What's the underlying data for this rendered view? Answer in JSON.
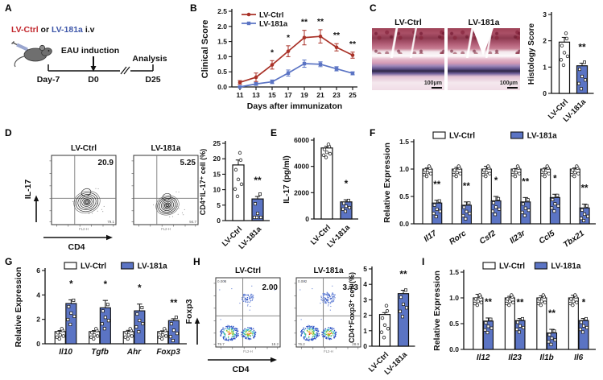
{
  "colors": {
    "red": "#a93228",
    "blue": "#5b74c4",
    "red_text": "#c2272d",
    "blue_text": "#3e57a9",
    "bar_stroke": "#111111"
  },
  "panels": {
    "A": {
      "label": "A",
      "inject": {
        "red": "LV-Ctrl",
        "or": " or ",
        "blue": "LV-181a",
        "iv": " i.v"
      },
      "eau": "EAU induction",
      "analysis": "Analysis",
      "day7": "Day-7",
      "d0": "D0",
      "d25": "D25"
    },
    "B": {
      "label": "B"
    },
    "C": {
      "label": "C",
      "titles": [
        "LV-Ctrl",
        "LV-181a"
      ],
      "scale": "100μm"
    },
    "D": {
      "label": "D",
      "flow": {
        "titles": [
          "LV-Ctrl",
          "LV-181a"
        ],
        "values": [
          "20.9",
          "5.25"
        ],
        "br": [
          "79.1",
          "94.7"
        ],
        "x": "CD4",
        "y": "IL-17",
        "axis": "FL2-H"
      }
    },
    "E": {
      "label": "E"
    },
    "F": {
      "label": "F"
    },
    "G": {
      "label": "G"
    },
    "H": {
      "label": "H",
      "flow": {
        "titles": [
          "LV-Ctrl",
          "LV-181a"
        ],
        "values": [
          "2.00",
          "3.73"
        ],
        "tl": [
          "0.008",
          "0.082"
        ],
        "bl": [
          "79.7",
          "76.2"
        ],
        "br": [
          "18.2",
          "28.9"
        ],
        "x": "CD4",
        "y": "Foxp3",
        "axis": "FL2-H"
      }
    },
    "I": {
      "label": "I"
    }
  },
  "chart_data": {
    "B": {
      "type": "line",
      "xlabel": "Days after immunizaton",
      "ylabel": "Clinical Score",
      "x": [
        11,
        13,
        15,
        17,
        19,
        21,
        23,
        25
      ],
      "ylim": [
        0,
        2.5
      ],
      "yticks": [
        "0.0",
        "0.5",
        "1.0",
        "1.5",
        "2.0",
        "2.5"
      ],
      "series": [
        {
          "name": "LV-Ctrl",
          "color": "red",
          "marker": "circle",
          "values": [
            0.15,
            0.32,
            0.73,
            1.18,
            1.63,
            1.67,
            1.31,
            1.05
          ],
          "errors": [
            0.06,
            0.14,
            0.14,
            0.18,
            0.24,
            0.22,
            0.12,
            0.1
          ]
        },
        {
          "name": "LV-181a",
          "color": "blue",
          "marker": "square",
          "values": [
            0.0,
            0.1,
            0.17,
            0.46,
            0.77,
            0.75,
            0.6,
            0.45
          ],
          "errors": [
            0.02,
            0.05,
            0.06,
            0.1,
            0.12,
            0.08,
            0.07,
            0.05
          ]
        }
      ],
      "stars": [
        "",
        "",
        "*",
        "*",
        "**",
        "**",
        "**",
        "**"
      ],
      "legend_position": "top-left",
      "grid": false
    },
    "C": {
      "type": "bar",
      "ylabel": "Histology Score",
      "ylim": [
        0,
        3
      ],
      "yticks": [
        "0",
        "1",
        "2",
        "3"
      ],
      "categories": [
        "LV-Ctrl",
        "LV-181a"
      ],
      "values": [
        1.95,
        1.05
      ],
      "errors": [
        0.18,
        0.1
      ],
      "fills": [
        "white",
        "blue"
      ],
      "star": "**"
    },
    "D": {
      "type": "bar",
      "ylabel": "CD4⁺IL-17⁺ cell (%)",
      "ylim": [
        0,
        25
      ],
      "yticks": [
        "0",
        "5",
        "10",
        "15",
        "20",
        "25"
      ],
      "categories": [
        "LV-Ctrl",
        "LV-181a"
      ],
      "values": [
        18,
        7
      ],
      "errors": [
        1.6,
        0.8
      ],
      "fills": [
        "white",
        "blue"
      ],
      "star": "**"
    },
    "E": {
      "type": "bar",
      "ylabel": "IL-17 (pg/ml)",
      "ylim": [
        0,
        6000
      ],
      "yticks": [
        "0",
        "2000",
        "4000",
        "6000"
      ],
      "categories": [
        "LV-Ctrl",
        "LV-181a"
      ],
      "values": [
        5400,
        1300
      ],
      "errors": [
        120,
        160
      ],
      "fills": [
        "white",
        "blue"
      ],
      "star": "*"
    },
    "H": {
      "type": "bar",
      "ylabel": "CD4⁺Foxp3⁺ cell (%)",
      "ylim": [
        0,
        5
      ],
      "yticks": [
        "0",
        "1",
        "2",
        "3",
        "4",
        "5"
      ],
      "categories": [
        "LV-Ctrl",
        "LV-181a"
      ],
      "values": [
        2.05,
        3.4
      ],
      "errors": [
        0.12,
        0.22
      ],
      "fills": [
        "white",
        "blue"
      ],
      "star": "**"
    },
    "F": {
      "type": "groupbar",
      "ylabel": "Relative Expression",
      "ylim": [
        0,
        1.5
      ],
      "yticks": [
        "0.0",
        "0.5",
        "1.0",
        "1.5"
      ],
      "legend": [
        "LV-Ctrl",
        "LV-181a"
      ],
      "categories": [
        "Il17",
        "Rorc",
        "Csf2",
        "Il23r",
        "Ccl5",
        "Tbx21"
      ],
      "series": [
        {
          "name": "LV-Ctrl",
          "fill": "white",
          "values": [
            1,
            1,
            1,
            1,
            1,
            1
          ],
          "errors": [
            0.02,
            0.03,
            0.05,
            0.01,
            0.02,
            0.02
          ]
        },
        {
          "name": "LV-181a",
          "fill": "blue",
          "values": [
            0.38,
            0.34,
            0.42,
            0.4,
            0.48,
            0.29
          ],
          "errors": [
            0.05,
            0.06,
            0.08,
            0.08,
            0.06,
            0.07
          ]
        }
      ],
      "stars": [
        "**",
        "**",
        "*",
        "**",
        "*",
        "**"
      ]
    },
    "G": {
      "type": "groupbar",
      "ylabel": "Relative Expression",
      "ylim": [
        0,
        6
      ],
      "yticks": [
        "0",
        "2",
        "4",
        "6"
      ],
      "legend": [
        "LV-Ctrl",
        "LV-181a"
      ],
      "categories": [
        "Il10",
        "Tgfb",
        "Ahr",
        "Foxp3"
      ],
      "series": [
        {
          "name": "LV-Ctrl",
          "fill": "white",
          "values": [
            1,
            1,
            1,
            1
          ],
          "errors": [
            0.08,
            0.08,
            0.1,
            0.06
          ]
        },
        {
          "name": "LV-181a",
          "fill": "blue",
          "values": [
            3.3,
            2.95,
            2.7,
            1.9
          ],
          "errors": [
            0.3,
            0.6,
            0.55,
            0.15
          ]
        }
      ],
      "stars": [
        "*",
        "*",
        "*",
        "**"
      ]
    },
    "I": {
      "type": "groupbar",
      "ylabel": "Relative Expression",
      "ylim": [
        0,
        1.5
      ],
      "yticks": [
        "0.0",
        "0.5",
        "1.0",
        "1.5"
      ],
      "legend": [
        "LV-Ctrl",
        "LV-181a"
      ],
      "categories": [
        "Il12",
        "Il23",
        "Il1b",
        "Il6"
      ],
      "series": [
        {
          "name": "LV-Ctrl",
          "fill": "white",
          "values": [
            1,
            1,
            1,
            1
          ],
          "errors": [
            0.07,
            0.03,
            0.04,
            0.05
          ]
        },
        {
          "name": "LV-181a",
          "fill": "blue",
          "values": [
            0.55,
            0.56,
            0.32,
            0.56
          ],
          "errors": [
            0.06,
            0.04,
            0.07,
            0.04
          ]
        }
      ],
      "stars": [
        "**",
        "**",
        "**",
        "*"
      ]
    }
  }
}
